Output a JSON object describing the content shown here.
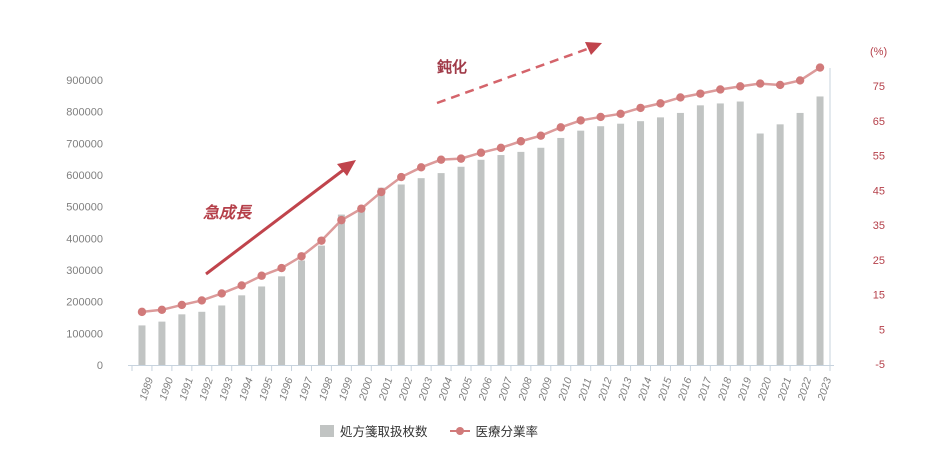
{
  "chart_data": {
    "type": "bar+line",
    "title": "",
    "categories": [
      "1989",
      "1990",
      "1991",
      "1992",
      "1993",
      "1994",
      "1995",
      "1996",
      "1997",
      "1998",
      "1999",
      "2000",
      "2001",
      "2002",
      "2003",
      "2004",
      "2005",
      "2006",
      "2007",
      "2008",
      "2009",
      "2010",
      "2011",
      "2012",
      "2013",
      "2014",
      "2015",
      "2016",
      "2017",
      "2018",
      "2019",
      "2020",
      "2021",
      "2022",
      "2023"
    ],
    "series": [
      {
        "name": "処方箋取扱枚数",
        "type": "bar",
        "axis": "left",
        "color": "#c1c4c3",
        "values": [
          125000,
          137000,
          160000,
          168000,
          188000,
          220000,
          248000,
          280000,
          330000,
          377000,
          475000,
          503000,
          560000,
          570000,
          590000,
          606000,
          626000,
          648000,
          663000,
          673000,
          686000,
          717000,
          740000,
          754000,
          762000,
          770000,
          782000,
          796000,
          820000,
          826000,
          832000,
          731000,
          760000,
          796000,
          848000
        ]
      },
      {
        "name": "医療分業率",
        "type": "line",
        "axis": "right",
        "color": "#d17a7a",
        "values": [
          10.0,
          10.6,
          12.0,
          13.3,
          15.3,
          17.6,
          20.4,
          22.6,
          26.0,
          30.5,
          36.4,
          39.7,
          44.5,
          48.8,
          51.6,
          53.8,
          54.1,
          55.8,
          57.2,
          59.1,
          60.7,
          63.1,
          65.1,
          66.1,
          67.0,
          68.7,
          70.0,
          71.7,
          72.8,
          74.0,
          74.9,
          75.7,
          75.3,
          76.6,
          80.3
        ]
      }
    ],
    "left_axis": {
      "min": 0,
      "max": 900000,
      "ticks": [
        "900000",
        "800000",
        "700000",
        "600000",
        "500000",
        "400000",
        "300000",
        "200000",
        "100000",
        "0"
      ]
    },
    "right_axis": {
      "min": -5,
      "max": 75,
      "unit_label": "(%)",
      "ticks": [
        "75",
        "65",
        "55",
        "45",
        "35",
        "25",
        "15",
        "5",
        "-5"
      ]
    },
    "annotations": [
      {
        "text": "急成長",
        "type": "solid-arrow"
      },
      {
        "text": "鈍化",
        "type": "dashed-arrow"
      }
    ],
    "legend_position": "bottom",
    "grid": false
  },
  "legend": {
    "bar_label": "処方箋取扱枚数",
    "line_label": "医療分業率"
  },
  "annotations": {
    "rapid": "急成長",
    "slowdown": "鈍化"
  },
  "axis": {
    "right_unit": "(%)"
  }
}
